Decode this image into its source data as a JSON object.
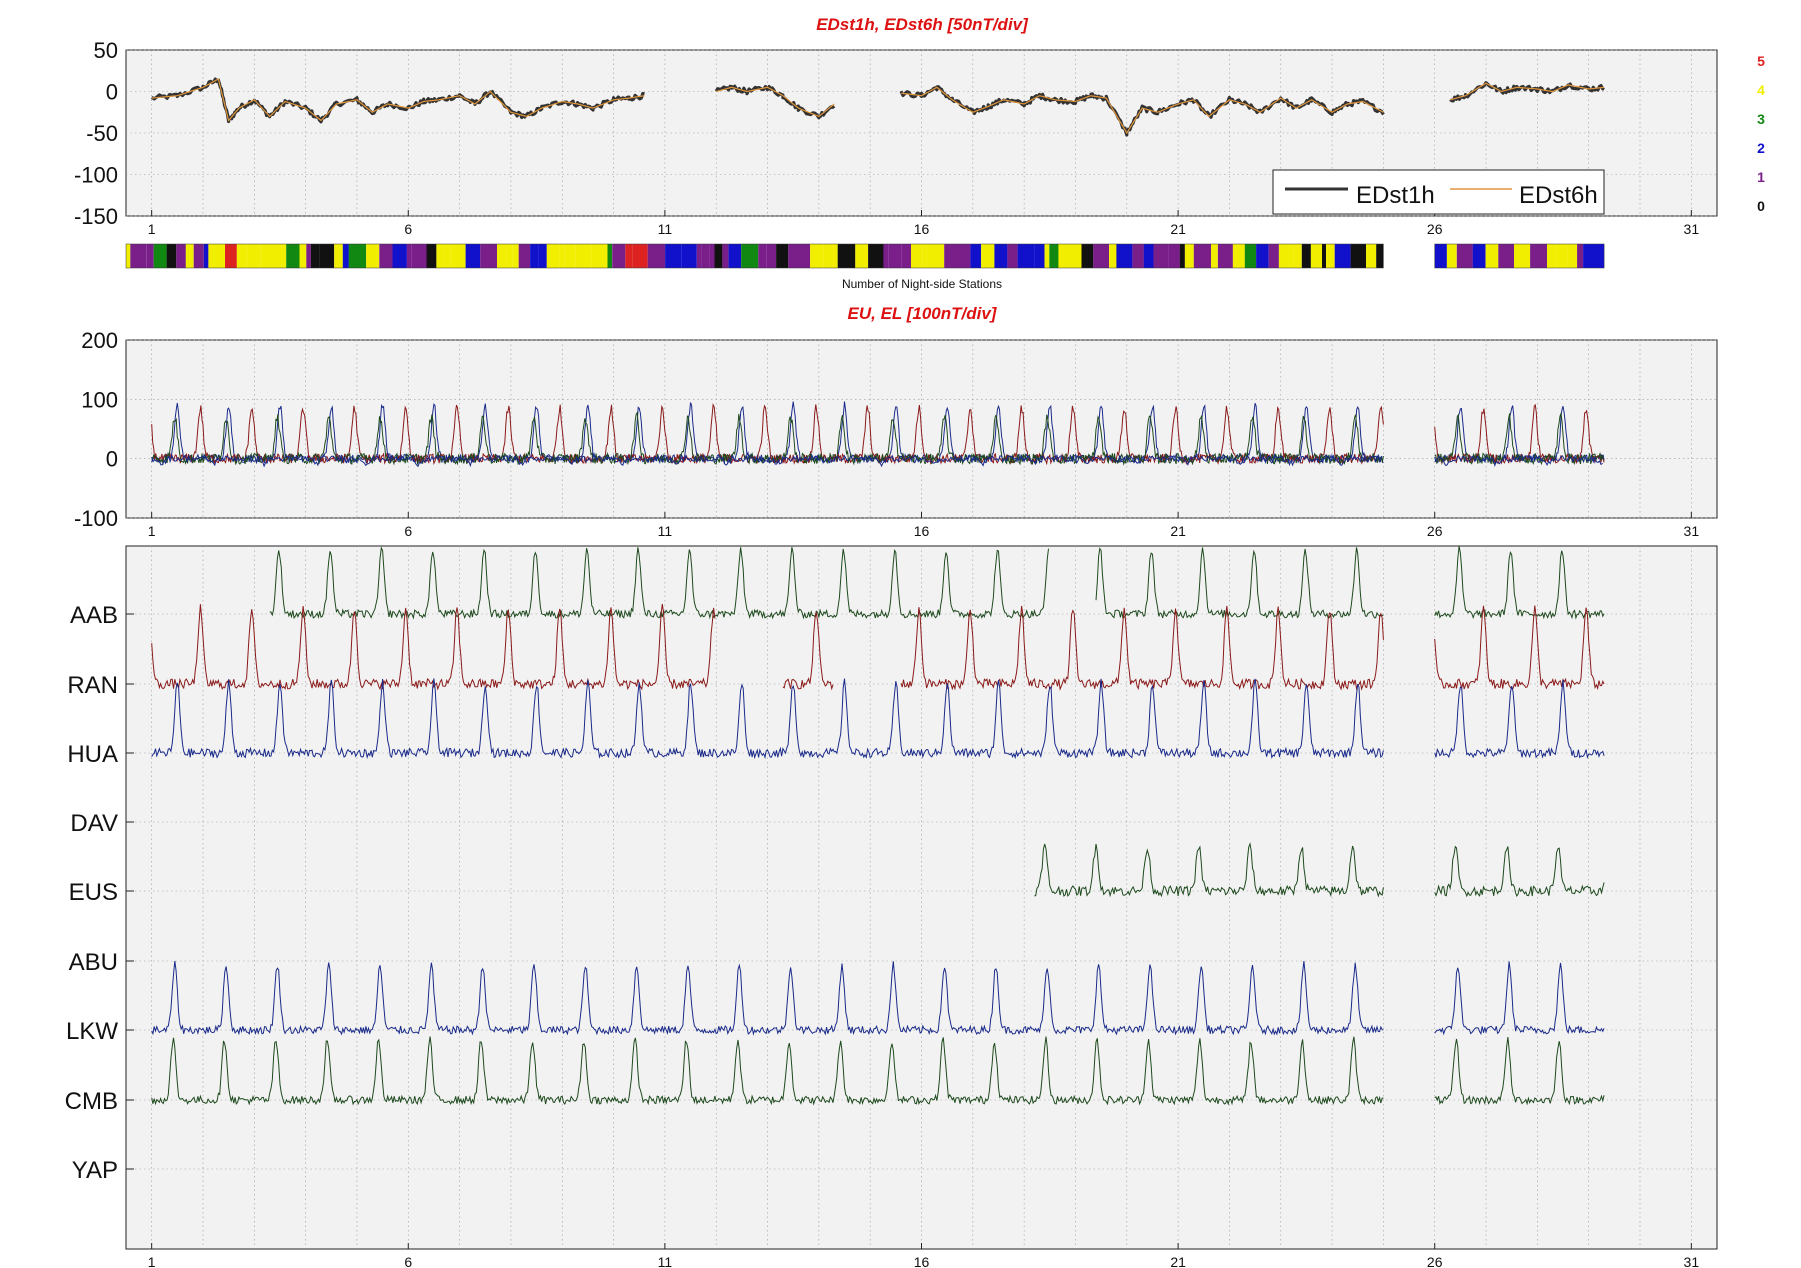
{
  "chart_data": [
    {
      "type": "line",
      "title": "EDst1h, EDst6h [50nT/div]",
      "ylim": [
        -150,
        50
      ],
      "yticks": [
        "50",
        "0",
        "-50",
        "-100",
        "-150"
      ],
      "xlim": [
        0,
        31
      ],
      "xticks": [
        "1",
        "6",
        "11",
        "16",
        "21",
        "26",
        "31"
      ],
      "grid": true,
      "legend_position": "bottom-right",
      "series": [
        {
          "name": "EDst1h",
          "color": "#333333",
          "x": [
            0.0,
            0.5,
            1.0,
            1.3,
            1.5,
            1.7,
            2.0,
            2.3,
            2.6,
            3.0,
            3.3,
            3.6,
            4.0,
            4.3,
            4.6,
            5.0,
            5.3,
            5.6,
            6.0,
            6.3,
            6.6,
            7.0,
            7.3,
            7.6,
            8.0,
            8.3,
            8.6,
            9.0,
            9.3,
            9.6,
            10.0,
            10.3,
            10.6,
            11.0,
            11.3,
            11.6,
            12.0,
            12.3,
            12.6,
            13.0,
            13.3,
            13.6,
            14.0,
            14.3,
            14.6,
            15.0,
            15.3,
            15.6,
            16.0,
            16.3,
            16.6,
            17.0,
            17.3,
            17.6,
            18.0,
            18.3,
            18.6,
            19.0,
            19.3,
            19.6,
            20.0,
            20.3,
            20.6,
            21.0,
            21.3,
            21.6,
            22.0,
            22.3,
            22.6,
            23.0,
            23.3,
            23.6,
            24.0,
            25.0,
            25.3,
            25.6,
            26.0,
            26.3,
            26.6,
            27.0,
            27.3,
            27.6,
            28.0,
            28.3
          ],
          "y": [
            -8,
            -5,
            5,
            15,
            -35,
            -20,
            -10,
            -30,
            -12,
            -20,
            -35,
            -15,
            -10,
            -25,
            -15,
            -20,
            -12,
            -10,
            -5,
            -15,
            0,
            -25,
            -30,
            -20,
            -12,
            -15,
            -20,
            -10,
            -8,
            -5,
            null,
            -5,
            null,
            0,
            5,
            0,
            5,
            -5,
            -20,
            -30,
            -15,
            null,
            -5,
            null,
            -2,
            -5,
            5,
            -10,
            -25,
            -18,
            -10,
            -15,
            -5,
            -10,
            -12,
            -5,
            -8,
            -50,
            -20,
            -25,
            -15,
            -10,
            -30,
            -10,
            -15,
            -25,
            -8,
            -20,
            -10,
            -25,
            -15,
            -12,
            -25,
            null,
            -10,
            -5,
            10,
            0,
            5,
            3,
            0,
            8,
            3,
            5
          ]
        },
        {
          "name": "EDst6h",
          "color": "#e0963c",
          "x": [
            0.0,
            1.0,
            2.0,
            3.0,
            4.0,
            5.0,
            6.0,
            7.0,
            8.0,
            9.0,
            10.0,
            11.0,
            12.0,
            13.0,
            14.0,
            15.0,
            16.0,
            17.0,
            18.0,
            19.0,
            20.0,
            21.0,
            22.0,
            23.0,
            24.0,
            25.0,
            26.0,
            27.0,
            28.0,
            28.3
          ],
          "y": [
            -6,
            0,
            -12,
            -22,
            -14,
            -16,
            -8,
            -22,
            -14,
            -12,
            -6,
            2,
            -2,
            -18,
            -6,
            -2,
            -18,
            -10,
            -8,
            -26,
            -18,
            -14,
            -14,
            -16,
            -20,
            -8,
            4,
            2,
            4,
            4
          ]
        }
      ]
    },
    {
      "type": "heatmap",
      "xlabel": "Number of Night-side Stations",
      "value_scale": [
        "5",
        "4",
        "3",
        "2",
        "1",
        "0"
      ],
      "value_colors": [
        "#dd2222",
        "#f2ee00",
        "#118811",
        "#1111cc",
        "#7a1f8a",
        "#111111"
      ]
    },
    {
      "type": "line",
      "title": "EU, EL   [100nT/div]",
      "ylim": [
        -100,
        200
      ],
      "yticks": [
        "200",
        "100",
        "0",
        "-100"
      ],
      "xlim": [
        0,
        31
      ],
      "xticks": [
        "1",
        "6",
        "11",
        "16",
        "21",
        "26",
        "31"
      ],
      "grid": true,
      "series": [
        {
          "color": "#1a2a8a"
        },
        {
          "color": "#8b1a1a"
        },
        {
          "color": "#1e4a1e"
        }
      ]
    },
    {
      "type": "line",
      "stations": [
        "AAB",
        "RAN",
        "HUA",
        "DAV",
        "EUS",
        "ABU",
        "LKW",
        "CMB",
        "YAP"
      ],
      "xlim": [
        0,
        31
      ],
      "xticks": [
        "1",
        "6",
        "11",
        "16",
        "21",
        "26",
        "31"
      ],
      "grid": true
    }
  ],
  "colors": {
    "blue": "#1a2a8a",
    "red": "#8b1a1a",
    "green": "#1e4a1e",
    "title": "#dd1111",
    "panel_bg": "#f2f2f2"
  }
}
